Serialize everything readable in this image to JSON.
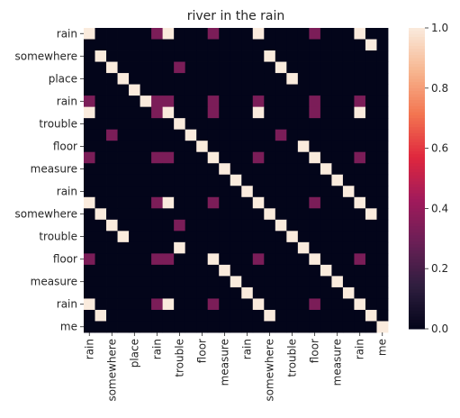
{
  "chart_data": {
    "type": "heatmap",
    "title": "river in the rain",
    "tokens": [
      "rain",
      "",
      "somewhere",
      "",
      "place",
      "",
      "rain",
      "",
      "trouble",
      "",
      "floor",
      "",
      "measure",
      "",
      "rain",
      "",
      "somewhere",
      "",
      "trouble",
      "",
      "floor",
      "",
      "measure",
      "",
      "rain",
      "",
      "me"
    ],
    "x_tick_labels": [
      "rain",
      "",
      "somewhere",
      "",
      "place",
      "",
      "rain",
      "",
      "trouble",
      "",
      "floor",
      "",
      "measure",
      "",
      "rain",
      "",
      "somewhere",
      "",
      "trouble",
      "",
      "floor",
      "",
      "measure",
      "",
      "rain",
      "",
      "me"
    ],
    "y_tick_labels": [
      "rain",
      "",
      "somewhere",
      "",
      "place",
      "",
      "rain",
      "",
      "trouble",
      "",
      "floor",
      "",
      "measure",
      "",
      "rain",
      "",
      "somewhere",
      "",
      "trouble",
      "",
      "floor",
      "",
      "measure",
      "",
      "rain",
      "",
      "me"
    ],
    "values": [
      [
        1,
        0,
        0,
        0,
        0,
        0,
        0.33,
        1,
        0,
        0,
        0,
        0.33,
        0,
        0,
        0,
        1,
        0,
        0,
        0,
        0,
        0.33,
        0,
        0,
        0,
        1,
        0,
        0
      ],
      [
        0,
        0,
        0,
        0,
        0,
        0,
        0,
        0,
        0,
        0,
        0,
        0,
        0,
        0,
        0,
        0,
        0,
        0,
        0,
        0,
        0,
        0,
        0,
        0,
        0,
        1,
        0
      ],
      [
        0,
        1,
        0,
        0,
        0,
        0,
        0,
        0,
        0,
        0,
        0,
        0,
        0,
        0,
        0,
        0,
        1,
        0,
        0,
        0,
        0,
        0,
        0,
        0,
        0,
        0,
        0
      ],
      [
        0,
        0,
        1,
        0,
        0,
        0,
        0,
        0,
        0.33,
        0,
        0,
        0,
        0,
        0,
        0,
        0,
        0,
        1,
        0,
        0,
        0,
        0,
        0,
        0,
        0,
        0,
        0
      ],
      [
        0,
        0,
        0,
        1,
        0,
        0,
        0,
        0,
        0,
        0,
        0,
        0,
        0,
        0,
        0,
        0,
        0,
        0,
        1,
        0,
        0,
        0,
        0,
        0,
        0,
        0,
        0
      ],
      [
        0,
        0,
        0,
        0,
        1,
        0,
        0,
        0,
        0,
        0,
        0,
        0,
        0,
        0,
        0,
        0,
        0,
        0,
        0,
        0,
        0,
        0,
        0,
        0,
        0,
        0,
        0
      ],
      [
        0.33,
        0,
        0,
        0,
        0,
        1,
        0.33,
        0.33,
        0,
        0,
        0,
        0.33,
        0,
        0,
        0,
        0.33,
        0,
        0,
        0,
        0,
        0.33,
        0,
        0,
        0,
        0.33,
        0,
        0
      ],
      [
        1,
        0,
        0,
        0,
        0,
        0,
        0.33,
        1,
        0,
        0,
        0,
        0.33,
        0,
        0,
        0,
        1,
        0,
        0,
        0,
        0,
        0.33,
        0,
        0,
        0,
        1,
        0,
        0
      ],
      [
        0,
        0,
        0,
        0,
        0,
        0,
        0,
        0,
        1,
        0,
        0,
        0,
        0,
        0,
        0,
        0,
        0,
        0,
        0,
        0,
        0,
        0,
        0,
        0,
        0,
        0,
        0
      ],
      [
        0,
        0,
        0.33,
        0,
        0,
        0,
        0,
        0,
        0,
        1,
        0,
        0,
        0,
        0,
        0,
        0,
        0,
        0.33,
        0,
        0,
        0,
        0,
        0,
        0,
        0,
        0,
        0
      ],
      [
        0,
        0,
        0,
        0,
        0,
        0,
        0,
        0,
        0,
        0,
        1,
        0,
        0,
        0,
        0,
        0,
        0,
        0,
        0,
        1,
        0,
        0,
        0,
        0,
        0,
        0,
        0
      ],
      [
        0.33,
        0,
        0,
        0,
        0,
        0,
        0.33,
        0.33,
        0,
        0,
        0,
        1,
        0,
        0,
        0,
        0.33,
        0,
        0,
        0,
        0,
        1,
        0,
        0,
        0,
        0.33,
        0,
        0
      ],
      [
        0,
        0,
        0,
        0,
        0,
        0,
        0,
        0,
        0,
        0,
        0,
        0,
        1,
        0,
        0,
        0,
        0,
        0,
        0,
        0,
        0,
        1,
        0,
        0,
        0,
        0,
        0
      ],
      [
        0,
        0,
        0,
        0,
        0,
        0,
        0,
        0,
        0,
        0,
        0,
        0,
        0,
        1,
        0,
        0,
        0,
        0,
        0,
        0,
        0,
        0,
        1,
        0,
        0,
        0,
        0
      ],
      [
        0,
        0,
        0,
        0,
        0,
        0,
        0,
        0,
        0,
        0,
        0,
        0,
        0,
        0,
        1,
        0,
        0,
        0,
        0,
        0,
        0,
        0,
        0,
        1,
        0,
        0,
        0
      ],
      [
        1,
        0,
        0,
        0,
        0,
        0,
        0.33,
        1,
        0,
        0,
        0,
        0.33,
        0,
        0,
        0,
        1,
        0,
        0,
        0,
        0,
        0.33,
        0,
        0,
        0,
        1,
        0,
        0
      ],
      [
        0,
        1,
        0,
        0,
        0,
        0,
        0,
        0,
        0,
        0,
        0,
        0,
        0,
        0,
        0,
        0,
        1,
        0,
        0,
        0,
        0,
        0,
        0,
        0,
        0,
        1,
        0
      ],
      [
        0,
        0,
        1,
        0,
        0,
        0,
        0,
        0,
        0.33,
        0,
        0,
        0,
        0,
        0,
        0,
        0,
        0,
        1,
        0,
        0,
        0,
        0,
        0,
        0,
        0,
        0,
        0
      ],
      [
        0,
        0,
        0,
        1,
        0,
        0,
        0,
        0,
        0,
        0,
        0,
        0,
        0,
        0,
        0,
        0,
        0,
        0,
        1,
        0,
        0,
        0,
        0,
        0,
        0,
        0,
        0
      ],
      [
        0,
        0,
        0,
        0,
        0,
        0,
        0,
        0,
        1,
        0,
        0,
        0,
        0,
        0,
        0,
        0,
        0,
        0,
        0,
        1,
        0,
        0,
        0,
        0,
        0,
        0,
        0
      ],
      [
        0.33,
        0,
        0,
        0,
        0,
        0,
        0.33,
        0.33,
        0,
        0,
        0,
        1,
        0,
        0,
        0,
        0.33,
        0,
        0,
        0,
        0,
        1,
        0,
        0,
        0,
        0.33,
        0,
        0
      ],
      [
        0,
        0,
        0,
        0,
        0,
        0,
        0,
        0,
        0,
        0,
        0,
        0,
        1,
        0,
        0,
        0,
        0,
        0,
        0,
        0,
        0,
        1,
        0,
        0,
        0,
        0,
        0
      ],
      [
        0,
        0,
        0,
        0,
        0,
        0,
        0,
        0,
        0,
        0,
        0,
        0,
        0,
        1,
        0,
        0,
        0,
        0,
        0,
        0,
        0,
        0,
        1,
        0,
        0,
        0,
        0
      ],
      [
        0,
        0,
        0,
        0,
        0,
        0,
        0,
        0,
        0,
        0,
        0,
        0,
        0,
        0,
        1,
        0,
        0,
        0,
        0,
        0,
        0,
        0,
        0,
        1,
        0,
        0,
        0
      ],
      [
        1,
        0,
        0,
        0,
        0,
        0,
        0.33,
        1,
        0,
        0,
        0,
        0.33,
        0,
        0,
        0,
        1,
        0,
        0,
        0,
        0,
        0.33,
        0,
        0,
        0,
        1,
        0,
        0
      ],
      [
        0,
        1,
        0,
        0,
        0,
        0,
        0,
        0,
        0,
        0,
        0,
        0,
        0,
        0,
        0,
        0,
        1,
        0,
        0,
        0,
        0,
        0,
        0,
        0,
        0,
        1,
        0
      ],
      [
        0,
        0,
        0,
        0,
        0,
        0,
        0,
        0,
        0,
        0,
        0,
        0,
        0,
        0,
        0,
        0,
        0,
        0,
        0,
        0,
        0,
        0,
        0,
        0,
        0,
        0,
        1
      ]
    ],
    "colorbar": {
      "range": [
        0.0,
        1.0
      ],
      "ticks": [
        0.0,
        0.2,
        0.4,
        0.6,
        0.8,
        1.0
      ],
      "tick_labels": [
        "0.0",
        "0.2",
        "0.4",
        "0.6",
        "0.8",
        "1.0"
      ]
    },
    "colormap": "rocket",
    "colormap_stops": [
      "#03051a",
      "#2f1e3f",
      "#6a1f56",
      "#a11a5b",
      "#e0283e",
      "#f37651",
      "#f7b690",
      "#faebdd"
    ],
    "grid": false,
    "legend_position": "right"
  }
}
